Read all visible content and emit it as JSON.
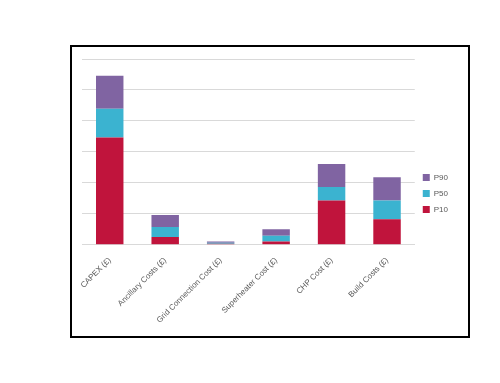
{
  "chart_data": {
    "type": "bar",
    "categories": [
      "CAPEX (£)",
      "Ancillary Costs (£)",
      "Grid Connection Cost (£)",
      "Superheater Cost (£)",
      "CHP Cost (£)",
      "Build Costs (£)"
    ],
    "series": [
      {
        "name": "P10",
        "color": "#c0143c",
        "values": [
          3.46,
          0.25,
          0.03,
          0.1,
          1.43,
          0.82
        ]
      },
      {
        "name": "P50",
        "color": "#3bb3d0",
        "values": [
          0.93,
          0.32,
          0.03,
          0.19,
          0.43,
          0.61
        ]
      },
      {
        "name": "P90",
        "color": "#8064a2",
        "values": [
          1.07,
          0.39,
          0.04,
          0.21,
          0.75,
          0.75
        ]
      }
    ],
    "ylim": [
      0,
      6
    ],
    "yticks": [
      0,
      1,
      2,
      3,
      4,
      5,
      6
    ],
    "stacked": true,
    "grid": true,
    "legend": "right",
    "tick_labels": "x"
  }
}
